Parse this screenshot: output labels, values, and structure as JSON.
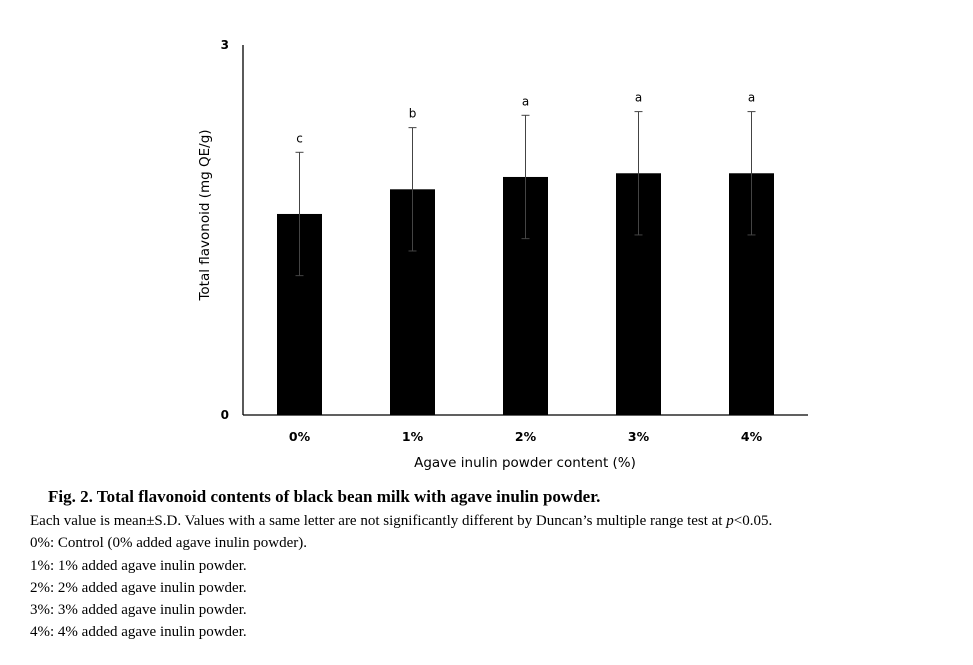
{
  "chart_data": {
    "type": "bar",
    "categories": [
      "0%",
      "1%",
      "2%",
      "3%",
      "4%"
    ],
    "values": [
      1.63,
      1.83,
      1.93,
      1.96,
      1.96
    ],
    "error": [
      0.5,
      0.5,
      0.5,
      0.5,
      0.5
    ],
    "significance_letters": [
      "c",
      "b",
      "a",
      "a",
      "a"
    ],
    "ylabel": "Total flavonoid  (mg QE/g)",
    "xlabel": "Agave inulin powder content (%)",
    "ylim": [
      0,
      3
    ],
    "yticks": [
      "0",
      "3"
    ],
    "bar_color": "#000000",
    "grid": false,
    "legend": "none"
  },
  "caption": {
    "title": "Fig. 2. Total flavonoid contents of black bean milk with agave inulin powder.",
    "note_prefix": "Each value is mean±S.D. Values with a same letter are not significantly different by Duncan’s multiple range test at ",
    "note_p": "p",
    "note_suffix": "<0.05.",
    "lines": [
      "0%: Control (0% added agave inulin powder).",
      "1%: 1% added agave inulin powder.",
      "2%: 2% added agave inulin powder.",
      "3%: 3% added agave inulin powder.",
      "4%: 4% added agave inulin powder."
    ]
  }
}
